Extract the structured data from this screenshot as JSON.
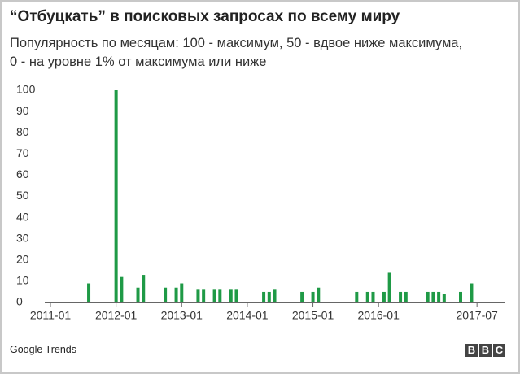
{
  "chart_data": {
    "type": "bar",
    "title": "“Отбуцкать” в поисковых запросах по всему миру",
    "subtitle": "Популярность по месяцам: 100 - максимум, 50 - вдвое ниже максимума, 0 - на уровне 1% от максимума или ниже",
    "categories": [
      "2011-01",
      null,
      null,
      null,
      null,
      null,
      null,
      null,
      null,
      null,
      null,
      null,
      "2012-01",
      null,
      null,
      null,
      null,
      null,
      null,
      null,
      null,
      null,
      null,
      null,
      "2013-01",
      null,
      null,
      null,
      null,
      null,
      null,
      null,
      null,
      null,
      null,
      null,
      "2014-01",
      null,
      null,
      null,
      null,
      null,
      null,
      null,
      null,
      null,
      null,
      null,
      "2015-01",
      null,
      null,
      null,
      null,
      null,
      null,
      null,
      null,
      null,
      null,
      null,
      "2016-01",
      null,
      null,
      null,
      null,
      null,
      null,
      null,
      null,
      null,
      null,
      null,
      null,
      null,
      null,
      null,
      null,
      null,
      "2017-07"
    ],
    "values": [
      0,
      0,
      0,
      0,
      0,
      0,
      0,
      9,
      0,
      0,
      0,
      0,
      100,
      12,
      0,
      0,
      7,
      13,
      0,
      0,
      0,
      7,
      0,
      7,
      9,
      0,
      0,
      6,
      6,
      0,
      6,
      6,
      0,
      6,
      6,
      0,
      0,
      0,
      0,
      5,
      5,
      6,
      0,
      0,
      0,
      0,
      5,
      0,
      5,
      7,
      0,
      0,
      0,
      0,
      0,
      0,
      5,
      0,
      5,
      5,
      0,
      5,
      14,
      0,
      5,
      5,
      0,
      0,
      0,
      5,
      5,
      5,
      4,
      0,
      0,
      5,
      0,
      9,
      0
    ],
    "color": "#1f9a46",
    "ylim": [
      0,
      100
    ],
    "yticks": [
      0,
      10,
      20,
      30,
      40,
      50,
      60,
      70,
      80,
      90,
      100
    ],
    "grid": false
  },
  "footer": {
    "source": "Google Trends",
    "logo": [
      "B",
      "B",
      "C"
    ]
  }
}
